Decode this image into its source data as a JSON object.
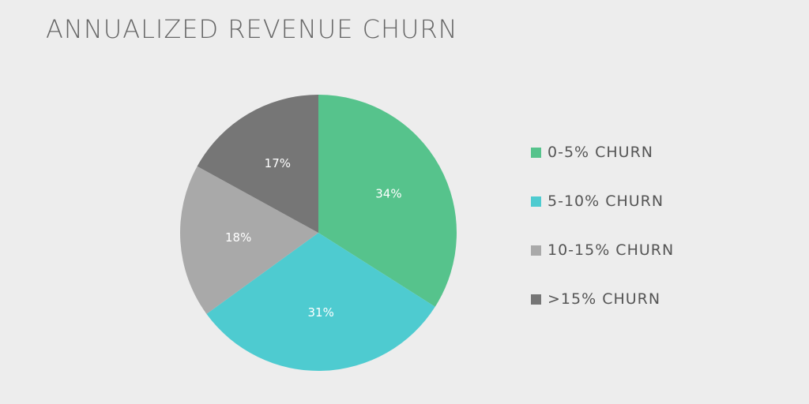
{
  "chart_data": {
    "type": "pie",
    "title": "ANNUALIZED REVENUE CHURN",
    "legend_position": "right",
    "slices": [
      {
        "label": "0-5% CHURN",
        "value": 34,
        "value_label": "34%",
        "color": "#56c38c"
      },
      {
        "label": "5-10% CHURN",
        "value": 31,
        "value_label": "31%",
        "color": "#4ecbd0"
      },
      {
        "label": "10-15% CHURN",
        "value": 18,
        "value_label": "18%",
        "color": "#a9a9a9"
      },
      {
        "label": ">15% CHURN",
        "value": 17,
        "value_label": "17%",
        "color": "#767676"
      }
    ]
  }
}
